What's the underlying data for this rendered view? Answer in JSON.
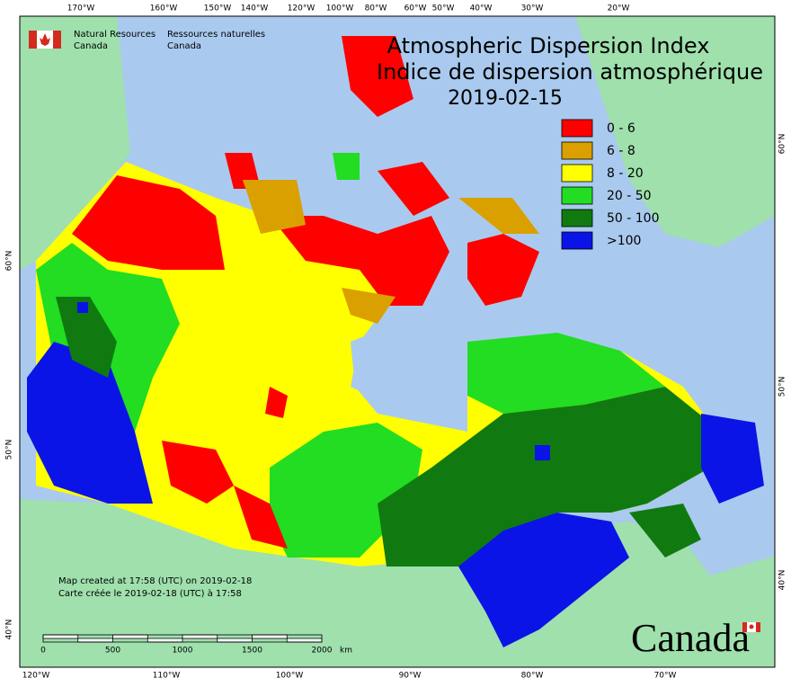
{
  "header": {
    "org_en": "Natural Resources",
    "org_en2": "Canada",
    "org_fr": "Ressources naturelles",
    "org_fr2": "Canada"
  },
  "title": {
    "line1": "Atmospheric Dispersion Index",
    "line2": "Indice de dispersion atmosphérique",
    "date": "2019-02-15"
  },
  "legend": [
    {
      "label": "0 - 6",
      "color": "#ff0000"
    },
    {
      "label": "6 - 8",
      "color": "#d9a000"
    },
    {
      "label": "8 - 20",
      "color": "#ffff00"
    },
    {
      "label": "20 - 50",
      "color": "#22dd22"
    },
    {
      "label": "50 - 100",
      "color": "#107a10"
    },
    {
      "label": ">100",
      "color": "#0a14e6"
    }
  ],
  "graticule": {
    "top": [
      "170°W",
      "160°W",
      "150°W",
      "140°W",
      "120°W",
      "100°W",
      "80°W",
      "60°W",
      "50°W",
      "40°W",
      "30°W",
      "20°W"
    ],
    "bottom": [
      "120°W",
      "110°W",
      "100°W",
      "90°W",
      "80°W",
      "70°W"
    ],
    "left": [
      "60°N",
      "50°N",
      "40°N"
    ],
    "right": [
      "60°N",
      "50°N",
      "40°N"
    ]
  },
  "credits": {
    "line1": "Map created at 17:58 (UTC) on 2019-02-18",
    "line2": "Carte créée le 2019-02-18 (UTC) à 17:58"
  },
  "scale_bar": {
    "labels": [
      "0",
      "500",
      "1000",
      "1500",
      "2000"
    ],
    "unit": "km"
  },
  "wordmark": "Canada"
}
